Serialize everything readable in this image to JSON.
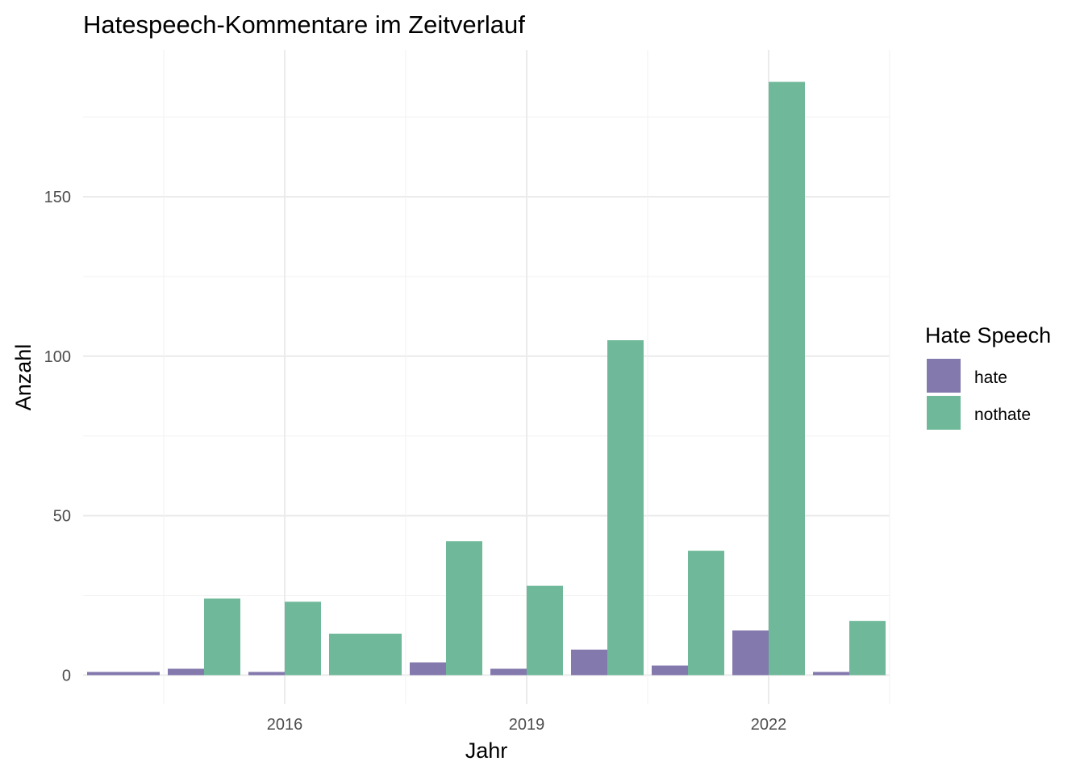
{
  "chart_data": {
    "type": "bar",
    "title": "Hatespeech-Kommentare im Zeitverlauf",
    "xlabel": "Jahr",
    "ylabel": "Anzahl",
    "x_tick_labels": [
      "2016",
      "2019",
      "2022"
    ],
    "x_tick_values": [
      2016,
      2019,
      2022
    ],
    "xlim": [
      2013.5,
      2023.5
    ],
    "y_tick_labels": [
      "0",
      "50",
      "100",
      "150"
    ],
    "y_tick_values": [
      0,
      50,
      100,
      150
    ],
    "ylim": [
      -9,
      196
    ],
    "grid": true,
    "legend": {
      "title": "Hate Speech",
      "position": "right",
      "entries": [
        "hate",
        "nothate"
      ]
    },
    "colors": {
      "hate": "#8379ad",
      "nothate": "#6fb99a"
    },
    "series": [
      {
        "name": "hate",
        "bars": [
          {
            "x": 2014,
            "value": 1
          },
          {
            "x": 2015,
            "value": 2
          },
          {
            "x": 2016,
            "value": 1
          },
          {
            "x": 2018,
            "value": 4
          },
          {
            "x": 2019,
            "value": 2
          },
          {
            "x": 2020,
            "value": 8
          },
          {
            "x": 2021,
            "value": 3
          },
          {
            "x": 2022,
            "value": 14
          },
          {
            "x": 2023,
            "value": 1
          }
        ]
      },
      {
        "name": "nothate",
        "bars": [
          {
            "x": 2015,
            "value": 24
          },
          {
            "x": 2016,
            "value": 23
          },
          {
            "x": 2017,
            "value": 13
          },
          {
            "x": 2018,
            "value": 42
          },
          {
            "x": 2019,
            "value": 28
          },
          {
            "x": 2020,
            "value": 105
          },
          {
            "x": 2021,
            "value": 39
          },
          {
            "x": 2022,
            "value": 186
          },
          {
            "x": 2023,
            "value": 17
          }
        ]
      }
    ]
  }
}
